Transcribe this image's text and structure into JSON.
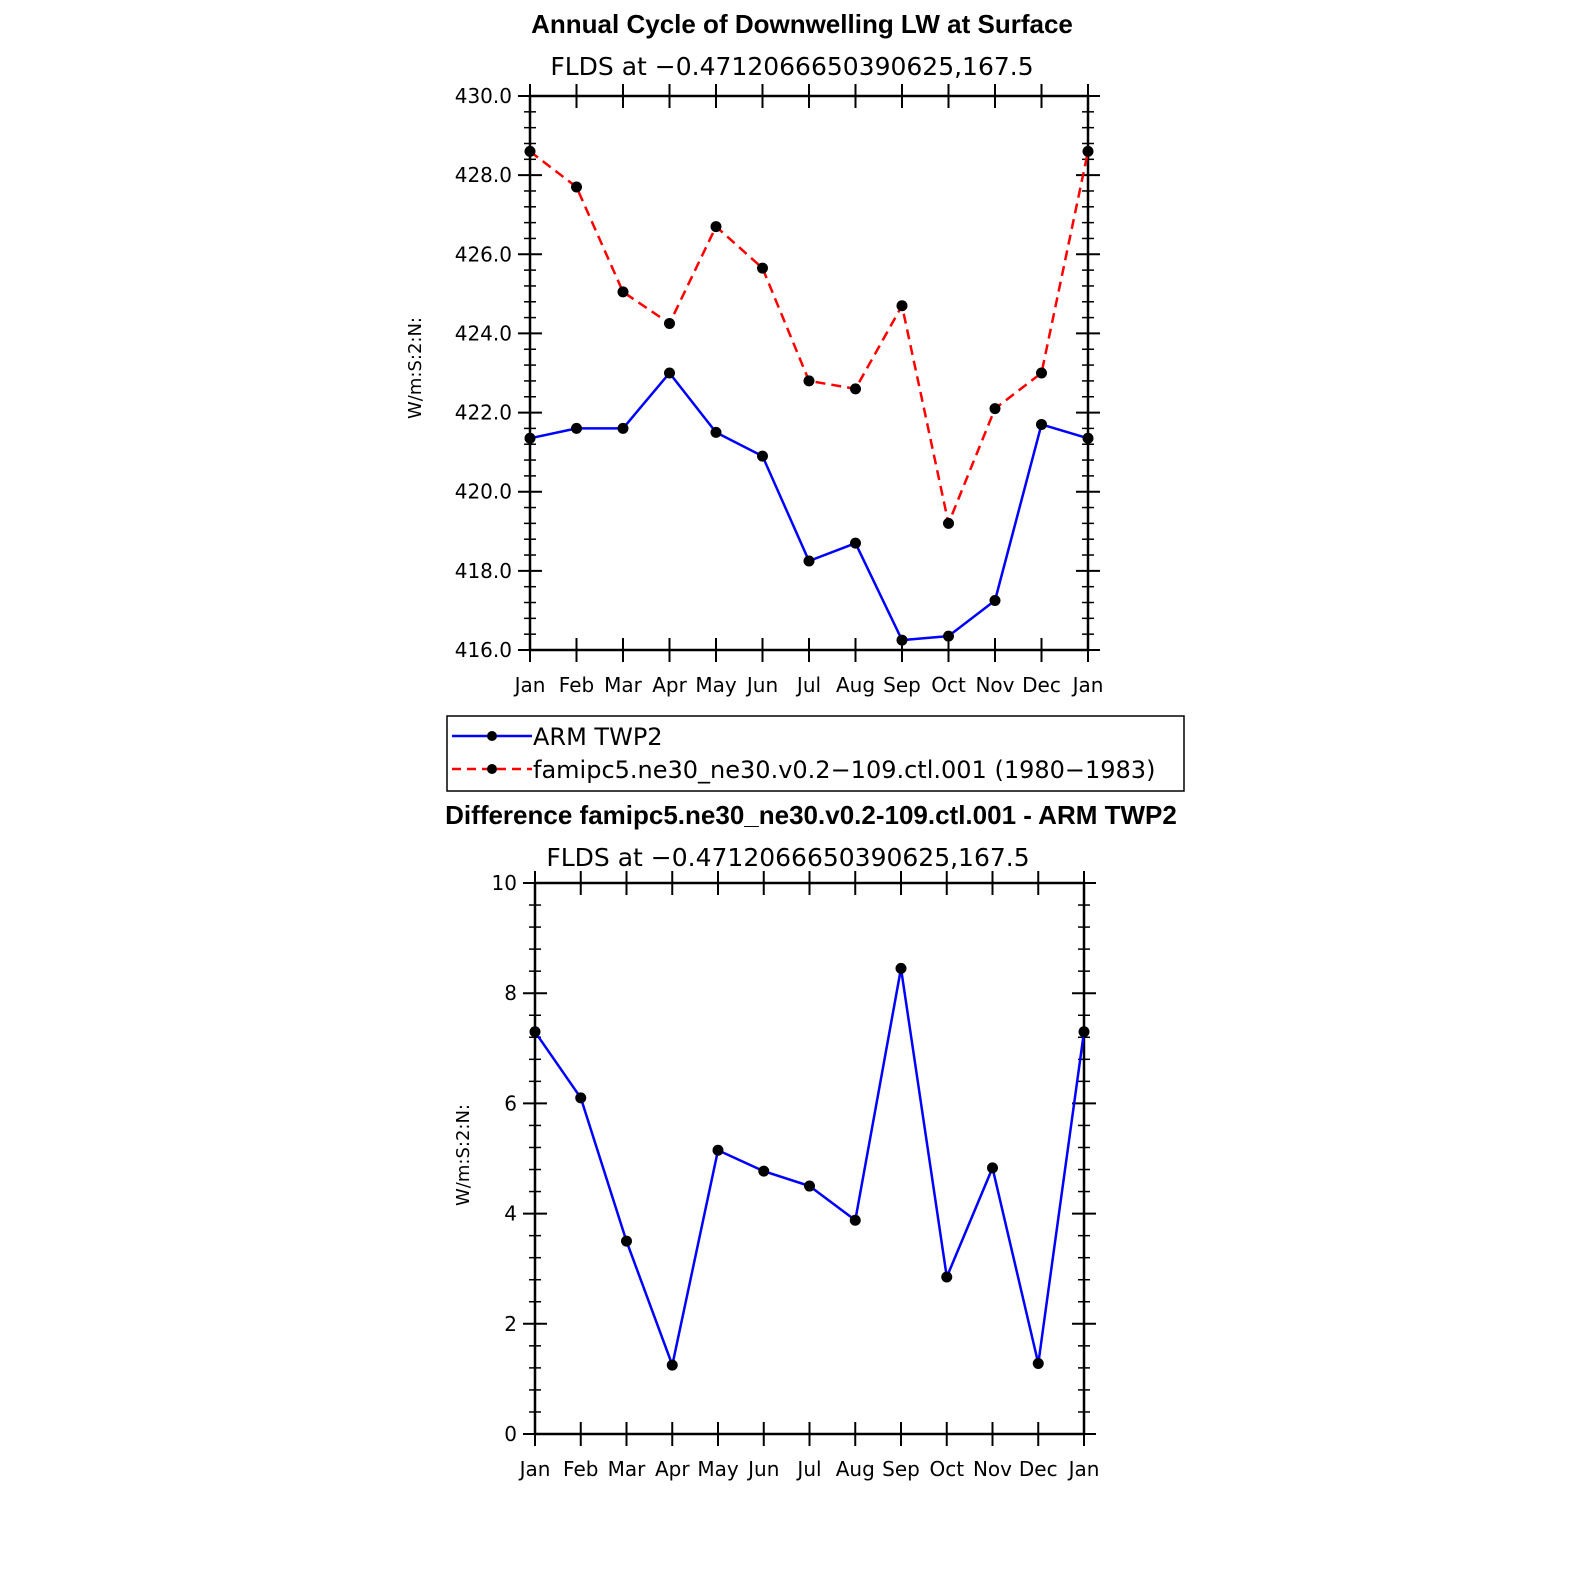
{
  "chart_data": [
    {
      "type": "line",
      "title": "Annual Cycle of Downwelling LW at Surface",
      "subtitle": "FLDS at −0.4712066650390625,167.5",
      "xlabel": "",
      "ylabel": "W/m:S:2:N:",
      "categories": [
        "Jan",
        "Feb",
        "Mar",
        "Apr",
        "May",
        "Jun",
        "Jul",
        "Aug",
        "Sep",
        "Oct",
        "Nov",
        "Dec",
        "Jan"
      ],
      "ylim": [
        416.0,
        430.0
      ],
      "yticks": [
        "416.0",
        "418.0",
        "420.0",
        "422.0",
        "424.0",
        "426.0",
        "428.0",
        "430.0"
      ],
      "series": [
        {
          "name": "ARM TWP2",
          "color": "#0000ff",
          "dash": "solid",
          "values": [
            421.35,
            421.6,
            421.6,
            423.0,
            421.5,
            420.9,
            418.25,
            418.7,
            416.25,
            416.35,
            417.25,
            421.7,
            421.35
          ]
        },
        {
          "name": "famipc5.ne30_ne30.v0.2−109.ctl.001 (1980−1983)",
          "color": "#ff0000",
          "dash": "dashed",
          "values": [
            428.6,
            427.7,
            425.05,
            424.25,
            426.7,
            425.65,
            422.8,
            422.6,
            424.7,
            419.2,
            422.1,
            423.0,
            428.6
          ]
        }
      ],
      "legend": {
        "position": "below",
        "entries": [
          "ARM TWP2",
          "famipc5.ne30_ne30.v0.2−109.ctl.001 (1980−1983)"
        ]
      }
    },
    {
      "type": "line",
      "title": "Difference famipc5.ne30_ne30.v0.2-109.ctl.001 - ARM TWP2",
      "subtitle": "FLDS at −0.4712066650390625,167.5",
      "xlabel": "",
      "ylabel": "W/m:S:2:N:",
      "categories": [
        "Jan",
        "Feb",
        "Mar",
        "Apr",
        "May",
        "Jun",
        "Jul",
        "Aug",
        "Sep",
        "Oct",
        "Nov",
        "Dec",
        "Jan"
      ],
      "ylim": [
        0,
        10
      ],
      "yticks": [
        "0",
        "2",
        "4",
        "6",
        "8",
        "10"
      ],
      "series": [
        {
          "name": "Difference",
          "color": "#0000ff",
          "dash": "solid",
          "values": [
            7.3,
            6.1,
            3.5,
            1.25,
            5.15,
            4.77,
            4.5,
            3.88,
            8.45,
            2.85,
            4.83,
            1.28,
            7.3
          ]
        }
      ]
    }
  ]
}
